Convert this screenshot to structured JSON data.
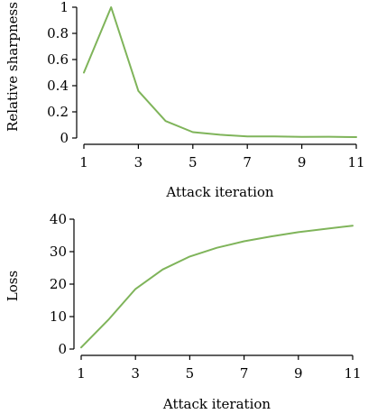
{
  "chart_data": [
    {
      "type": "line",
      "xlabel": "Attack iteration",
      "ylabel": "Relative sharpness",
      "x": [
        1,
        2,
        3,
        4,
        5,
        6,
        7,
        8,
        9,
        10,
        11
      ],
      "xticks": [
        "1",
        "3",
        "5",
        "7",
        "9",
        "11"
      ],
      "xtick_values": [
        1,
        3,
        5,
        7,
        9,
        11
      ],
      "yticks": [
        "0",
        "0.2",
        "0.4",
        "0.6",
        "0.8",
        "1"
      ],
      "ytick_values": [
        0,
        0.2,
        0.4,
        0.6,
        0.8,
        1
      ],
      "xlim": [
        1,
        11
      ],
      "ylim": [
        0,
        1
      ],
      "grid": false,
      "line_color": "#7fb45a",
      "series": [
        {
          "values": [
            0.5,
            1.0,
            0.36,
            0.13,
            0.045,
            0.025,
            0.012,
            0.012,
            0.008,
            0.01,
            0.007
          ]
        }
      ]
    },
    {
      "type": "line",
      "xlabel": "Attack iteration",
      "ylabel": "Loss",
      "x": [
        1,
        2,
        3,
        4,
        5,
        6,
        7,
        8,
        9,
        10,
        11
      ],
      "xticks": [
        "1",
        "3",
        "5",
        "7",
        "9",
        "11"
      ],
      "xtick_values": [
        1,
        3,
        5,
        7,
        9,
        11
      ],
      "yticks": [
        "0",
        "10",
        "20",
        "30",
        "40"
      ],
      "ytick_values": [
        0,
        10,
        20,
        30,
        40
      ],
      "xlim": [
        1,
        11
      ],
      "ylim": [
        0,
        40
      ],
      "grid": false,
      "line_color": "#7fb45a",
      "series": [
        {
          "values": [
            0.5,
            9.0,
            18.5,
            24.5,
            28.5,
            31.2,
            33.2,
            34.7,
            36.0,
            37.0,
            38.0
          ]
        }
      ]
    }
  ]
}
